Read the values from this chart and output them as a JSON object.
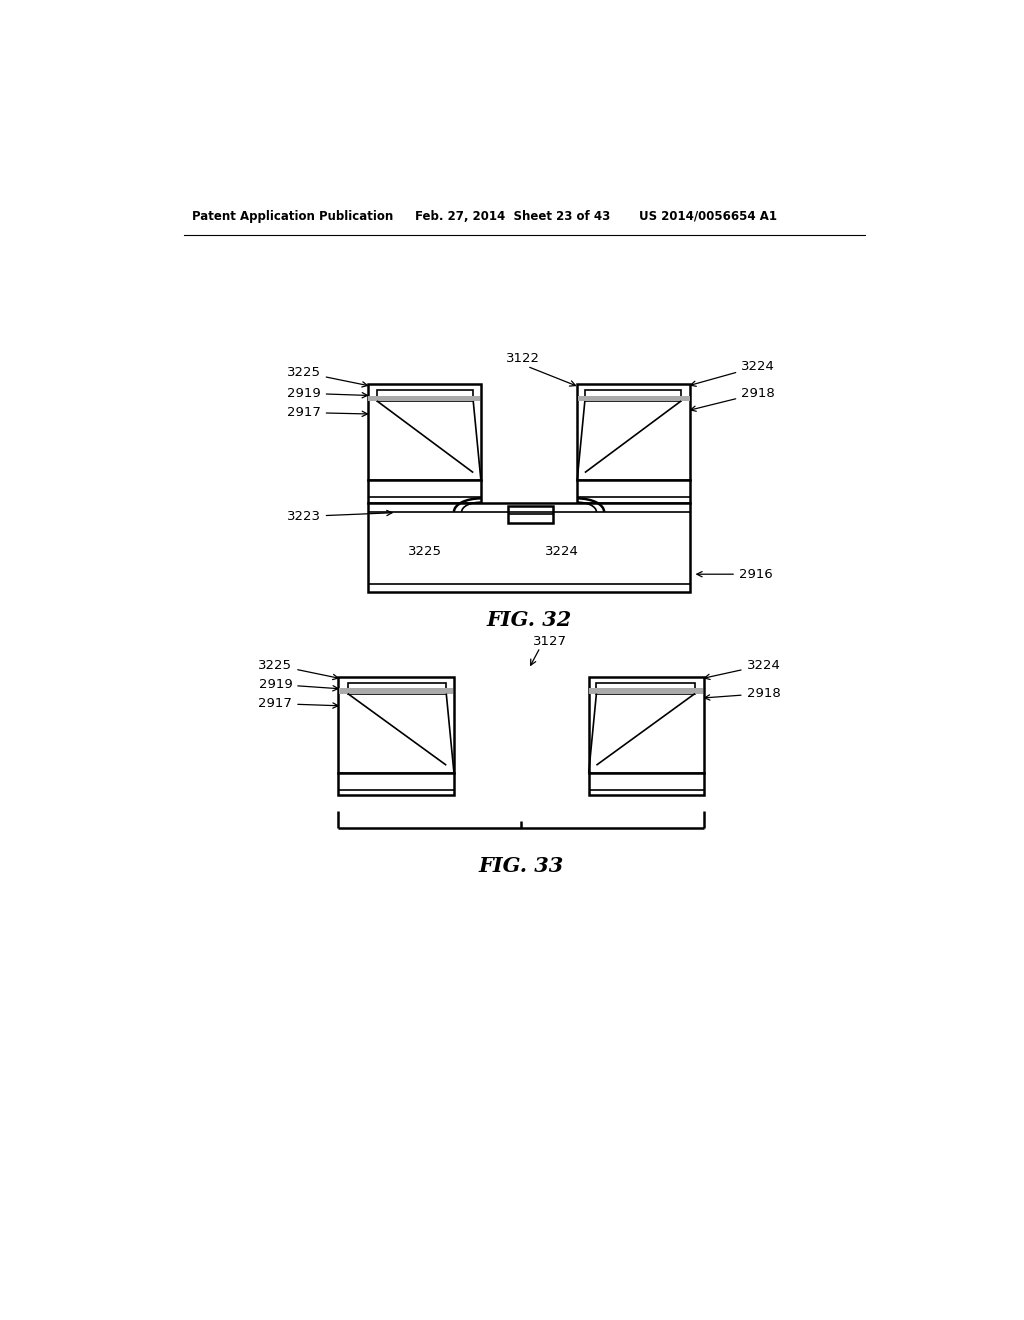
{
  "header_left": "Patent Application Publication",
  "header_mid": "Feb. 27, 2014  Sheet 23 of 43",
  "header_right": "US 2014/0056654 A1",
  "fig32_label": "FIG. 32",
  "fig33_label": "FIG. 33",
  "background_color": "#ffffff",
  "line_color": "#000000",
  "gray_color": "#aaaaaa"
}
